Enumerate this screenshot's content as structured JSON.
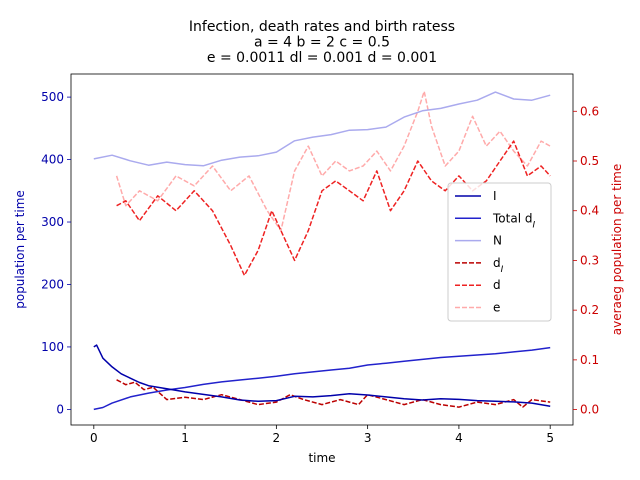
{
  "chart_data": {
    "type": "line",
    "title_lines": [
      "Infection, death rates and birth ratess",
      "a = 4   b = 2   c = 0.5",
      "e = 0.0011   dl = 0.001   d = 0.001"
    ],
    "xlabel": "time",
    "ylabel_left": "population per time",
    "ylabel_right": "averaeg population per time",
    "xlim": [
      -0.25,
      5.25
    ],
    "ylim_left": [
      -25,
      537
    ],
    "ylim_right": [
      -0.031,
      0.675
    ],
    "xticks": [
      0,
      1,
      2,
      3,
      4,
      5
    ],
    "yticks_left": [
      0,
      100,
      200,
      300,
      400,
      500
    ],
    "yticks_right": [
      0.0,
      0.1,
      0.2,
      0.3,
      0.4,
      0.5,
      0.6
    ],
    "yticks_right_labels": [
      "0.0",
      "0.1",
      "0.2",
      "0.3",
      "0.4",
      "0.5",
      "0.6"
    ],
    "legend_position": "center-right",
    "colors": {
      "I": "#0000aa",
      "TotalDI": "#2222cc",
      "N": "#aaaaee",
      "dI": "#bb0000",
      "d": "#ee2222",
      "e": "#ffaaaa",
      "leftAxis": "#0000aa",
      "rightAxis": "#cc0000"
    },
    "series": [
      {
        "key": "I",
        "name": "I",
        "axis": "left",
        "style": "solid",
        "x": [
          0,
          0.03,
          0.1,
          0.2,
          0.3,
          0.4,
          0.5,
          0.6,
          0.8,
          1.0,
          1.2,
          1.4,
          1.6,
          1.8,
          2.0,
          2.2,
          2.4,
          2.6,
          2.8,
          3.0,
          3.2,
          3.4,
          3.6,
          3.8,
          4.0,
          4.2,
          4.4,
          4.6,
          4.8,
          5.0
        ],
        "y": [
          100,
          103,
          82,
          68,
          57,
          50,
          43,
          38,
          33,
          28,
          24,
          20,
          15,
          13,
          14,
          21,
          20,
          22,
          25,
          23,
          20,
          17,
          15,
          17,
          16,
          14,
          13,
          12,
          10,
          5
        ]
      },
      {
        "key": "TotalDI",
        "name": "Total dI",
        "axis": "left",
        "style": "solid",
        "x": [
          0,
          0.1,
          0.2,
          0.4,
          0.6,
          0.8,
          1.0,
          1.2,
          1.4,
          1.6,
          1.8,
          2.0,
          2.2,
          2.4,
          2.6,
          2.8,
          3.0,
          3.2,
          3.4,
          3.6,
          3.8,
          4.0,
          4.2,
          4.4,
          4.6,
          4.8,
          5.0
        ],
        "y": [
          0,
          3,
          10,
          20,
          26,
          31,
          35,
          40,
          44,
          47,
          50,
          53,
          57,
          60,
          63,
          66,
          71,
          74,
          77,
          80,
          83,
          85,
          87,
          89,
          92,
          95,
          99
        ]
      },
      {
        "key": "N",
        "name": "N",
        "axis": "left",
        "style": "solid",
        "x": [
          0,
          0.2,
          0.4,
          0.6,
          0.8,
          1.0,
          1.2,
          1.4,
          1.6,
          1.8,
          2.0,
          2.2,
          2.4,
          2.6,
          2.8,
          3.0,
          3.2,
          3.4,
          3.6,
          3.8,
          4.0,
          4.2,
          4.4,
          4.6,
          4.8,
          5.0
        ],
        "y": [
          401,
          407,
          398,
          391,
          396,
          392,
          390,
          399,
          404,
          406,
          412,
          430,
          436,
          440,
          447,
          448,
          452,
          468,
          478,
          482,
          489,
          495,
          508,
          497,
          495,
          503
        ]
      },
      {
        "key": "dI",
        "name": "dI",
        "axis": "right",
        "style": "dashed",
        "x": [
          0.25,
          0.35,
          0.45,
          0.55,
          0.65,
          0.8,
          1.0,
          1.2,
          1.4,
          1.6,
          1.8,
          2.0,
          2.15,
          2.3,
          2.5,
          2.7,
          2.9,
          3.0,
          3.2,
          3.4,
          3.6,
          3.8,
          4.0,
          4.2,
          4.4,
          4.6,
          4.7,
          4.8,
          5.0
        ],
        "y": [
          0.06,
          0.05,
          0.055,
          0.04,
          0.045,
          0.02,
          0.025,
          0.02,
          0.03,
          0.02,
          0.01,
          0.015,
          0.03,
          0.02,
          0.01,
          0.02,
          0.01,
          0.03,
          0.02,
          0.01,
          0.02,
          0.01,
          0.005,
          0.015,
          0.01,
          0.02,
          0.005,
          0.02,
          0.015
        ]
      },
      {
        "key": "d",
        "name": "d",
        "axis": "right",
        "style": "dashed",
        "x": [
          0.25,
          0.35,
          0.5,
          0.7,
          0.9,
          1.1,
          1.3,
          1.5,
          1.65,
          1.8,
          1.95,
          2.1,
          2.2,
          2.35,
          2.5,
          2.65,
          2.8,
          2.95,
          3.1,
          3.25,
          3.4,
          3.55,
          3.7,
          3.85,
          4.0,
          4.15,
          4.3,
          4.45,
          4.6,
          4.75,
          4.9,
          5.0
        ],
        "y": [
          0.41,
          0.42,
          0.38,
          0.43,
          0.4,
          0.44,
          0.4,
          0.33,
          0.27,
          0.32,
          0.4,
          0.34,
          0.3,
          0.36,
          0.44,
          0.46,
          0.44,
          0.42,
          0.48,
          0.4,
          0.44,
          0.5,
          0.46,
          0.44,
          0.47,
          0.44,
          0.46,
          0.5,
          0.54,
          0.47,
          0.49,
          0.47
        ]
      },
      {
        "key": "e",
        "name": "e",
        "axis": "right",
        "style": "dashed",
        "x": [
          0.25,
          0.35,
          0.5,
          0.7,
          0.9,
          1.1,
          1.3,
          1.5,
          1.7,
          1.9,
          2.05,
          2.2,
          2.35,
          2.5,
          2.65,
          2.8,
          2.95,
          3.1,
          3.25,
          3.4,
          3.55,
          3.62,
          3.7,
          3.85,
          4.0,
          4.15,
          4.3,
          4.45,
          4.6,
          4.75,
          4.9,
          5.0
        ],
        "y": [
          0.47,
          0.41,
          0.44,
          0.42,
          0.47,
          0.45,
          0.49,
          0.44,
          0.47,
          0.4,
          0.36,
          0.48,
          0.53,
          0.47,
          0.5,
          0.48,
          0.49,
          0.52,
          0.48,
          0.53,
          0.6,
          0.64,
          0.57,
          0.49,
          0.52,
          0.59,
          0.53,
          0.56,
          0.52,
          0.49,
          0.54,
          0.53
        ]
      }
    ],
    "legend": [
      {
        "key": "I",
        "label": "I",
        "sub": ""
      },
      {
        "key": "TotalDI",
        "label": "Total d",
        "sub": "I"
      },
      {
        "key": "N",
        "label": "N",
        "sub": ""
      },
      {
        "key": "dI",
        "label": "d",
        "sub": "I"
      },
      {
        "key": "d",
        "label": "d",
        "sub": ""
      },
      {
        "key": "e",
        "label": "e",
        "sub": ""
      }
    ]
  }
}
